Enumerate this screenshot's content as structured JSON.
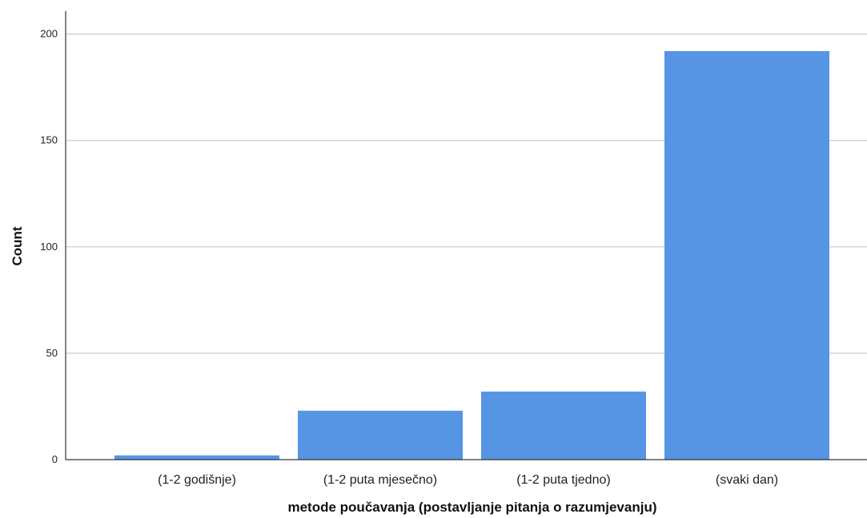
{
  "chart_data": {
    "type": "bar",
    "categories": [
      "(1-2 godišnje)",
      "(1-2 puta mjesečno)",
      "(1-2 puta tjedno)",
      "(svaki dan)"
    ],
    "values": [
      2,
      23,
      32,
      192
    ],
    "title": "",
    "xlabel": "metode poučavanja (postavljanje pitanja o razumjevanju)",
    "ylabel": "Count",
    "ylim": [
      0,
      210
    ],
    "yticks": [
      0,
      50,
      100,
      150,
      200
    ],
    "grid": true,
    "bar_color": "#5595e4",
    "gridline_color": "#c8c8c8",
    "axis_color": "#333333"
  }
}
